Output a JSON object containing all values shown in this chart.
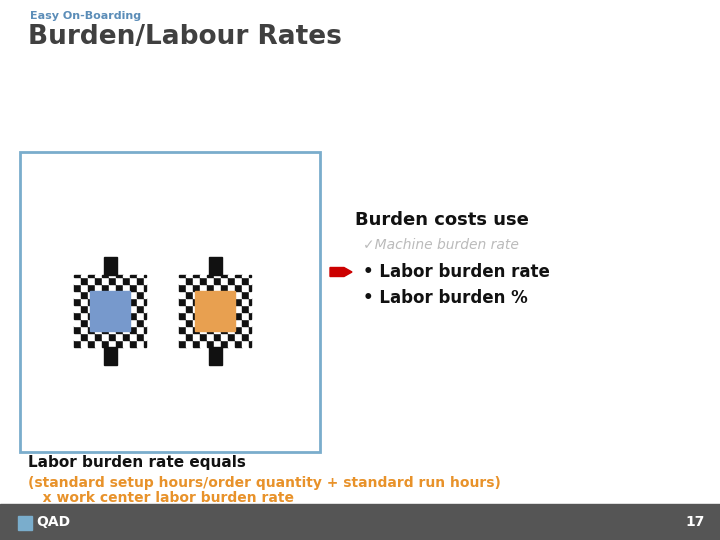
{
  "subtitle": "Easy On-Boarding",
  "subtitle_color": "#5B8DB8",
  "title": "Burden/Labour Rates",
  "title_color": "#404040",
  "burden_header": "Burden costs use",
  "machine_text": "✓Machine burden rate",
  "machine_color": "#BBBBBB",
  "bullet1": "• Labor burden rate",
  "bullet2": "• Labor burden %",
  "bullet_color": "#111111",
  "arrow_color": "#CC0000",
  "label_equals": "Labor burden rate equals",
  "formula_line1": "(standard setup hours/order quantity + standard run hours)",
  "formula_line2": "   x work center labor burden rate",
  "formula_color": "#E8922A",
  "box_border_color": "#7AADCC",
  "checkered_color1": "#111111",
  "checkered_color2": "#FFFFFF",
  "blue_rect_color": "#7799CC",
  "orange_rect_color": "#E8A050",
  "footer_bg": "#555555",
  "footer_text": "17",
  "page_bg": "#FFFFFF"
}
